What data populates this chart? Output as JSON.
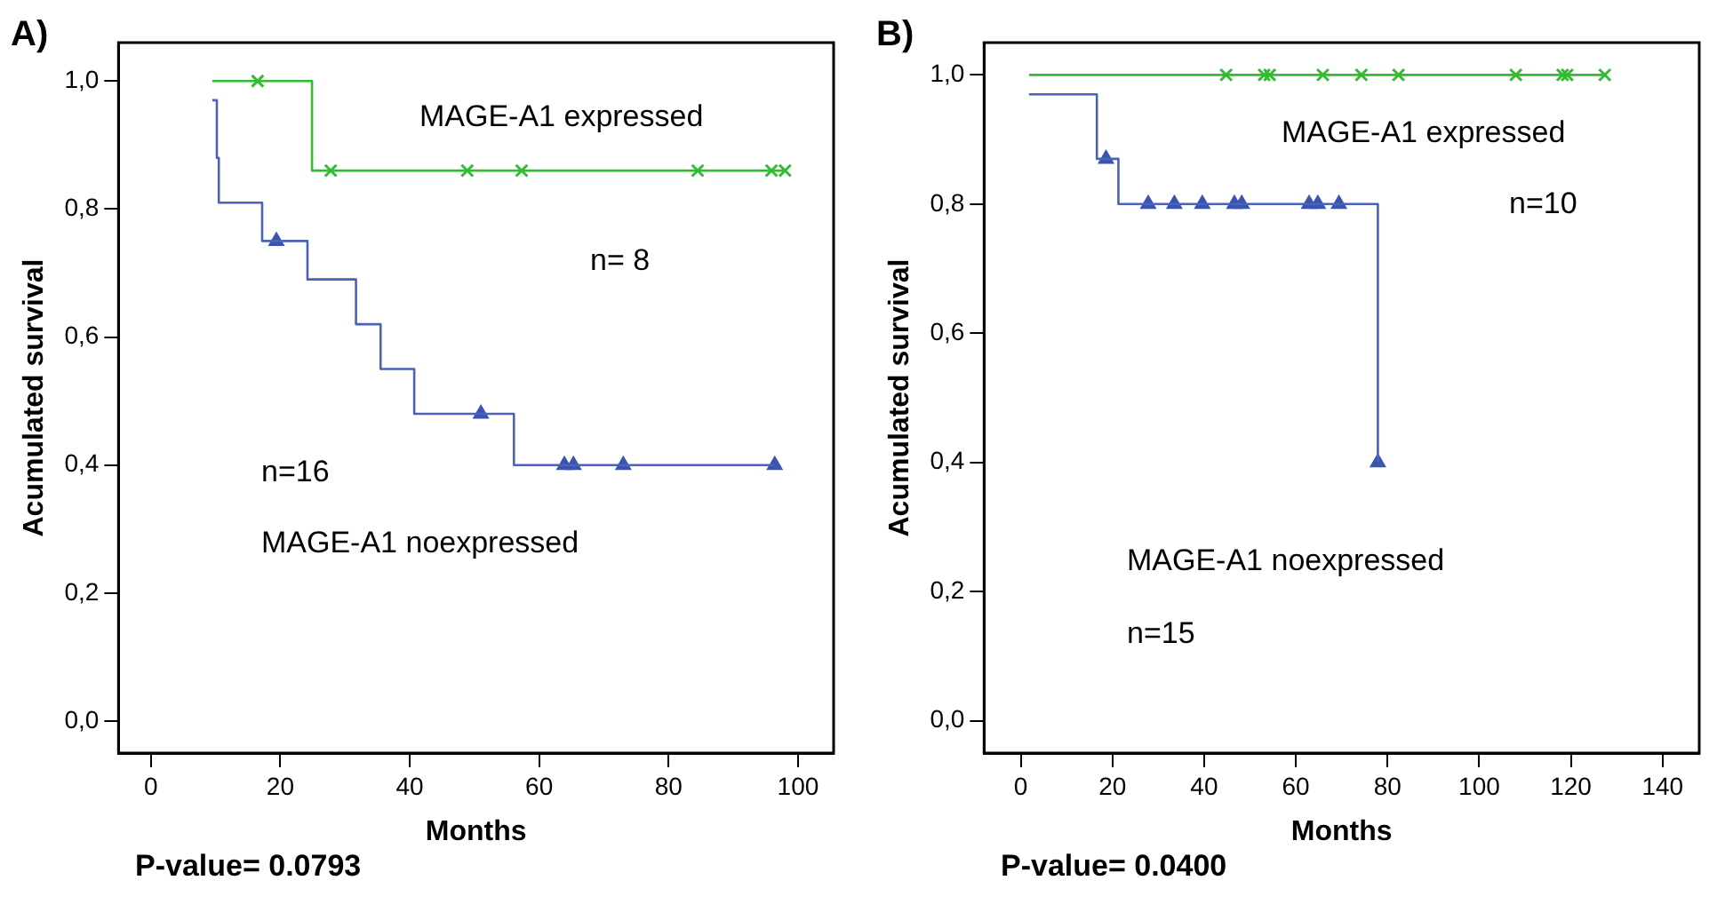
{
  "chart_data": [
    {
      "type": "step",
      "title": "A)",
      "xlabel": "Months",
      "ylabel": "Acumulated survival",
      "xlim": [
        -5,
        105.5
      ],
      "ylim": [
        -0.05,
        1.06
      ],
      "xticks": [
        0,
        20,
        40,
        60,
        80,
        100
      ],
      "yticks": [
        {
          "value": 0,
          "label": "0,0"
        },
        {
          "value": 0.2,
          "label": "0,2"
        },
        {
          "value": 0.4,
          "label": "0,4"
        },
        {
          "value": 0.6,
          "label": "0,6"
        },
        {
          "value": 0.8,
          "label": "0,8"
        },
        {
          "value": 1,
          "label": "1,0"
        }
      ],
      "grid": false,
      "legend": false,
      "line_style": "solid",
      "series": [
        {
          "color": "#4a62b8",
          "marker": "none",
          "x": [
            9.5,
            10.2,
            10.5,
            17.2,
            24.2,
            31.7,
            35.5,
            40.7,
            56.1,
            96.4
          ],
          "values": [
            0.97,
            0.88,
            0.81,
            0.75,
            0.69,
            0.62,
            0.55,
            0.48,
            0.4,
            0.4
          ]
        },
        {
          "type": "scatter",
          "color": "#3a55b0",
          "marker": "triangle",
          "x": [
            19.4,
            51,
            63.9,
            65.3,
            73,
            96.4
          ],
          "values": [
            0.75,
            0.48,
            0.4,
            0.4,
            0.4,
            0.4
          ]
        },
        {
          "color": "#33bb33",
          "marker": "none",
          "x": [
            9.5,
            24.9,
            98
          ],
          "values": [
            1.0,
            0.86,
            0.86
          ]
        },
        {
          "type": "scatter",
          "color": "#33bb33",
          "marker": "cross",
          "x": [
            16.5,
            27.8,
            48.9,
            57.3,
            84.5,
            95.9,
            98
          ],
          "values": [
            1.0,
            0.86,
            0.86,
            0.86,
            0.86,
            0.86,
            0.86
          ]
        }
      ],
      "annotations": [
        "MAGE-A1 expressed",
        "n= 8",
        "n=16",
        "MAGE-A1 noexpressed",
        "P-value= 0.0793"
      ]
    },
    {
      "type": "step",
      "title": "B)",
      "xlabel": "Months",
      "ylabel": "Acumulated survival",
      "xlim": [
        -8,
        148
      ],
      "ylim": [
        -0.05,
        1.05
      ],
      "xticks": [
        0,
        20,
        40,
        60,
        80,
        100,
        120,
        140
      ],
      "yticks": [
        {
          "value": 0,
          "label": "0,0"
        },
        {
          "value": 0.2,
          "label": "0,2"
        },
        {
          "value": 0.4,
          "label": "0,4"
        },
        {
          "value": 0.6,
          "label": "0,6"
        },
        {
          "value": 0.8,
          "label": "0,8"
        },
        {
          "value": 1,
          "label": "1,0"
        }
      ],
      "grid": false,
      "legend": false,
      "line_style": "solid",
      "series": [
        {
          "color": "#4a62b8",
          "marker": "none",
          "x": [
            1.8,
            16.6,
            21.3,
            77.9,
            77.9
          ],
          "values": [
            0.97,
            0.87,
            0.8,
            0.4,
            0.4
          ]
        },
        {
          "type": "scatter",
          "color": "#3a55b0",
          "marker": "triangle",
          "x": [
            18.6,
            27.8,
            33.5,
            39.6,
            46.6,
            48.2,
            62.9,
            64.8,
            69.4,
            77.9
          ],
          "values": [
            0.87,
            0.8,
            0.8,
            0.8,
            0.8,
            0.8,
            0.8,
            0.8,
            0.8,
            0.4
          ]
        },
        {
          "color": "#33bb33",
          "marker": "none",
          "x": [
            1.8,
            127.4
          ],
          "values": [
            1.0,
            1.0
          ]
        },
        {
          "type": "scatter",
          "color": "#33bb33",
          "marker": "cross",
          "x": [
            44.8,
            53.1,
            54.3,
            65.9,
            74.3,
            82.4,
            108,
            118.2,
            119.2,
            127.4
          ],
          "values": [
            1.0,
            1.0,
            1.0,
            1.0,
            1.0,
            1.0,
            1.0,
            1.0,
            1.0,
            1.0
          ]
        }
      ],
      "annotations": [
        "MAGE-A1 expressed",
        "n=10",
        "MAGE-A1 noexpressed",
        "n=15",
        "P-value= 0.0400"
      ]
    }
  ]
}
